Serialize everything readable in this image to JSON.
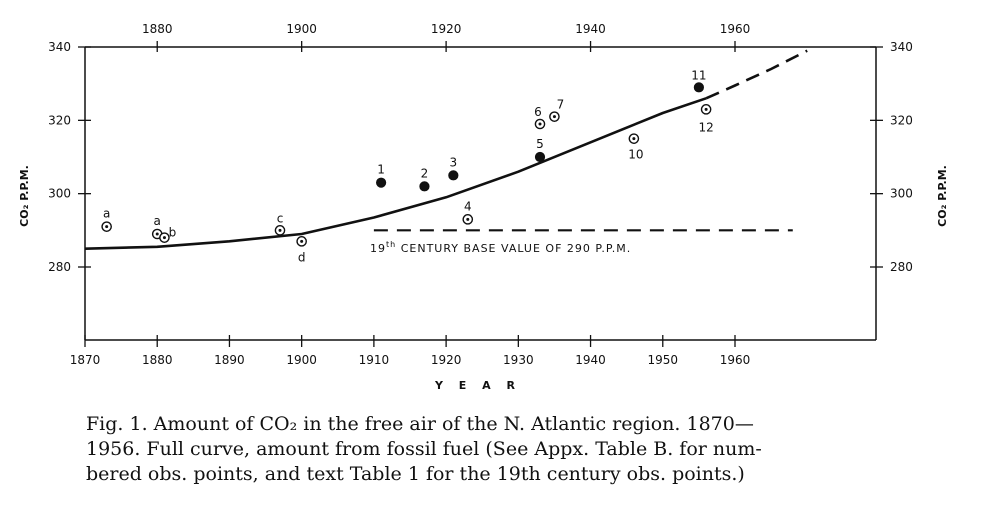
{
  "chart_data": {
    "type": "scatter",
    "xlabel": "Y E A R",
    "ylabel_left": "CO₂  P.P.M.",
    "ylabel_right": "CO₂  P.P.M.",
    "xlim": [
      1870,
      1980
    ],
    "ylim": [
      262,
      342
    ],
    "bottom_x_ticks": [
      1870,
      1880,
      1890,
      1900,
      1910,
      1920,
      1930,
      1940,
      1950,
      1960
    ],
    "top_x_ticks": [
      1880,
      1900,
      1920,
      1940,
      1960
    ],
    "y_ticks": [
      280,
      300,
      320,
      340
    ],
    "grid": false,
    "series": [
      {
        "points": [
          {
            "x": 1873,
            "y": 291,
            "label": "a",
            "marker": "circle-dot"
          },
          {
            "x": 1880,
            "y": 289,
            "label": "a",
            "marker": "circle-dot"
          },
          {
            "x": 1881,
            "y": 288,
            "label": "b",
            "marker": "circle-dot"
          },
          {
            "x": 1897,
            "y": 290,
            "label": "c",
            "marker": "circle-dot"
          },
          {
            "x": 1900,
            "y": 287,
            "label": "d",
            "marker": "circle-dot"
          },
          {
            "x": 1911,
            "y": 303,
            "label": "1",
            "marker": "filled"
          },
          {
            "x": 1917,
            "y": 302,
            "label": "2",
            "marker": "filled"
          },
          {
            "x": 1921,
            "y": 305,
            "label": "3",
            "marker": "filled"
          },
          {
            "x": 1923,
            "y": 293,
            "label": "4",
            "marker": "circle-dot"
          },
          {
            "x": 1933,
            "y": 310,
            "label": "5",
            "marker": "filled"
          },
          {
            "x": 1933,
            "y": 319,
            "label": "6",
            "marker": "circle-dot"
          },
          {
            "x": 1935,
            "y": 321,
            "label": "7",
            "marker": "circle-dot"
          },
          {
            "x": 1946,
            "y": 315,
            "label": "10",
            "marker": "circle-dot"
          },
          {
            "x": 1955,
            "y": 329,
            "label": "11",
            "marker": "filled"
          },
          {
            "x": 1956,
            "y": 323,
            "label": "12",
            "marker": "circle-dot"
          }
        ]
      }
    ],
    "curve": {
      "x": [
        1870,
        1880,
        1890,
        1900,
        1910,
        1920,
        1930,
        1940,
        1950,
        1956
      ],
      "y": [
        285,
        285.5,
        287,
        289,
        293.5,
        299,
        306,
        314,
        322,
        326
      ],
      "style": "solid"
    },
    "curve_extrapolation": {
      "x": [
        1956,
        1960,
        1965,
        1970
      ],
      "y": [
        326,
        329.5,
        334,
        339
      ],
      "style": "dashed"
    },
    "baseline": {
      "y": 290,
      "x_range": [
        1910,
        1968
      ],
      "style": "dashed",
      "label": "19th CENTURY BASE VALUE OF 290 P.P.M.",
      "label_main_start": "19",
      "label_sup": "th",
      "label_main_end": " CENTURY  BASE  VALUE  OF  290  P.P.M."
    }
  },
  "caption": "Fig. 1. Amount of CO₂ in the free air of the N. Atlantic region. 1870—\n1956. Full curve, amount from fossil fuel (See Appx. Table B. for num-\nbered obs. points, and text Table 1 for the 19th century obs. points.)"
}
